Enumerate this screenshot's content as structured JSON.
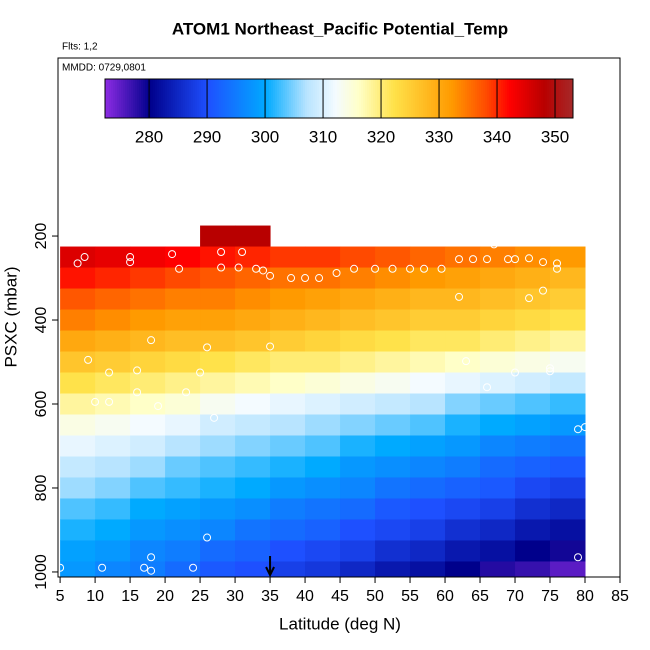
{
  "chart_data": {
    "type": "heatmap",
    "title": "ATOM1 Northeast_Pacific Potential_Temp",
    "subtitle": "Flts: 1,2",
    "annotation": "MMDD: 0729,0801",
    "x_label": "Latitude (deg N)",
    "y_label": "PSXC (mbar)",
    "x": [
      7.5,
      12.5,
      17.5,
      22.5,
      27.5,
      32.5,
      37.5,
      42.5,
      47.5,
      52.5,
      57.5,
      62.5,
      67.5,
      72.5,
      77.5
    ],
    "y": [
      200,
      250,
      300,
      350,
      400,
      450,
      500,
      550,
      600,
      650,
      700,
      750,
      800,
      850,
      900,
      950,
      1000
    ],
    "z": [
      [
        null,
        null,
        null,
        null,
        348,
        348,
        null,
        null,
        null,
        null,
        null,
        null,
        null,
        null,
        null
      ],
      [
        345,
        344,
        343,
        342,
        341,
        340,
        339,
        339,
        338,
        337,
        336,
        335,
        334,
        333,
        332
      ],
      [
        341,
        340,
        339,
        338,
        337,
        336,
        335,
        335,
        334,
        333,
        332,
        331,
        330,
        329,
        328
      ],
      [
        337,
        336,
        335,
        334,
        334,
        333,
        332,
        331,
        330,
        329,
        328,
        328,
        327,
        326,
        325
      ],
      [
        334,
        333,
        332,
        331,
        331,
        330,
        329,
        328,
        327,
        326,
        325,
        325,
        324,
        323,
        322
      ],
      [
        330,
        329,
        328,
        327,
        327,
        326,
        325,
        324,
        323,
        322,
        321,
        321,
        320,
        319,
        318
      ],
      [
        326,
        325,
        324,
        323,
        322,
        321,
        320,
        320,
        319,
        318,
        317,
        316,
        315,
        314,
        313
      ],
      [
        322,
        321,
        320,
        319,
        318,
        317,
        316,
        315,
        314,
        313,
        312,
        311,
        310,
        309,
        308
      ],
      [
        318,
        317,
        316,
        315,
        313,
        312,
        311,
        310,
        309,
        308,
        307,
        305,
        304,
        303,
        302
      ],
      [
        314,
        313,
        312,
        311,
        309,
        308,
        307,
        306,
        305,
        304,
        303,
        301,
        300,
        299,
        298
      ],
      [
        311,
        310,
        309,
        307,
        306,
        305,
        304,
        303,
        301,
        300,
        299,
        298,
        296,
        295,
        294
      ],
      [
        308,
        307,
        306,
        304,
        303,
        302,
        301,
        300,
        298,
        297,
        296,
        295,
        293,
        292,
        291
      ],
      [
        306,
        305,
        303,
        302,
        301,
        300,
        298,
        297,
        296,
        294,
        293,
        292,
        291,
        289,
        288
      ],
      [
        303,
        302,
        300,
        299,
        298,
        297,
        295,
        294,
        293,
        291,
        290,
        289,
        288,
        286,
        285
      ],
      [
        301,
        300,
        298,
        297,
        296,
        294,
        293,
        292,
        290,
        289,
        288,
        286,
        285,
        283,
        282
      ],
      [
        299,
        298,
        296,
        295,
        293,
        292,
        290,
        289,
        288,
        286,
        285,
        283,
        282,
        280,
        279
      ],
      [
        298,
        296,
        295,
        293,
        291,
        290,
        288,
        287,
        285,
        283,
        282,
        280,
        278,
        277,
        275
      ]
    ],
    "xlim": [
      4.7,
      85
    ],
    "ylim": [
      1012,
      -224
    ],
    "xticks": [
      5,
      10,
      15,
      20,
      25,
      30,
      35,
      40,
      45,
      50,
      55,
      60,
      65,
      70,
      75,
      80,
      85
    ],
    "yticks": [
      200,
      400,
      600,
      800,
      1000
    ],
    "clim": [
      272.4,
      353.1
    ],
    "cticks": [
      280,
      290,
      300,
      310,
      320,
      330,
      340,
      350
    ],
    "colorscale": [
      [
        272.4,
        "#8a2be2"
      ],
      [
        280,
        "#00008b"
      ],
      [
        290,
        "#1e50ff"
      ],
      [
        300,
        "#00aaff"
      ],
      [
        307,
        "#b8e4ff"
      ],
      [
        312,
        "#f4fbff"
      ],
      [
        316,
        "#ffffc8"
      ],
      [
        322,
        "#ffe24a"
      ],
      [
        332,
        "#ff9a00"
      ],
      [
        338,
        "#ff4a00"
      ],
      [
        342,
        "#ff0000"
      ],
      [
        348,
        "#b80000"
      ],
      [
        353.1,
        "#a52a2a"
      ]
    ],
    "track": {
      "lat": [
        8.5,
        7.5,
        15,
        15,
        21,
        22,
        28,
        28,
        30.5,
        31,
        33,
        34,
        35,
        38,
        40,
        42,
        44.5,
        47,
        50,
        52.5,
        55,
        57,
        59.5,
        62,
        64,
        66,
        69,
        70,
        72,
        74,
        76,
        76,
        74,
        72,
        62,
        67,
        18,
        26,
        35,
        9,
        10,
        12,
        12,
        16,
        16,
        19,
        23,
        25,
        27,
        63,
        66,
        70,
        75,
        75,
        80,
        79,
        79,
        26,
        5,
        11,
        18,
        17,
        18,
        24
      ],
      "p": [
        250,
        265,
        250,
        262,
        243,
        278,
        238,
        275,
        275,
        238,
        278,
        282,
        295,
        300,
        300,
        300,
        288,
        278,
        278,
        278,
        278,
        278,
        278,
        255,
        255,
        255,
        255,
        255,
        253,
        262,
        265,
        278,
        330,
        348,
        345,
        220,
        448,
        465,
        463,
        495,
        595,
        525,
        595,
        520,
        572,
        605,
        572,
        525,
        633,
        498,
        560,
        525,
        522,
        515,
        655,
        660,
        965,
        918,
        990,
        990,
        965,
        990,
        997,
        990
      ]
    },
    "arrow_x": 35
  }
}
